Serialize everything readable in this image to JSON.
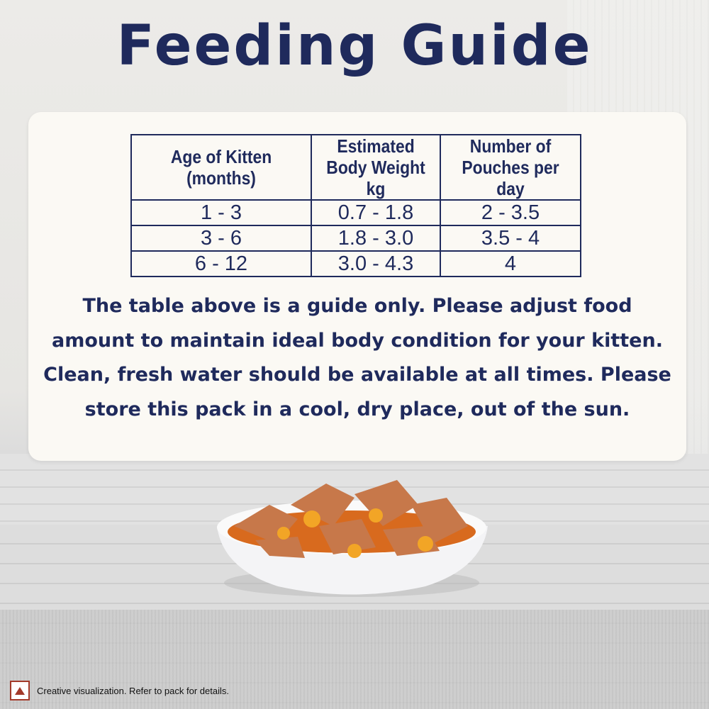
{
  "title": "Feeding Guide",
  "table": {
    "headers": [
      "Age of Kitten (months)",
      "Estimated Body Weight kg",
      "Number of Pouches per day"
    ],
    "rows": [
      [
        "1 - 3",
        "0.7 - 1.8",
        "2 - 3.5"
      ],
      [
        "3 - 6",
        "1.8 - 3.0",
        "3.5 - 4"
      ],
      [
        "6 - 12",
        "3.0 - 4.3",
        "4"
      ]
    ]
  },
  "note": "The table above is a guide only. Please adjust food amount to maintain ideal body condition for your kitten. Clean, fresh water should be available at all times. Please store this pack in a cool, dry place, out of the sun.",
  "disclaimer": {
    "icon": "warning-triangle-icon",
    "text": "Creative visualization. Refer to pack for details."
  },
  "colors": {
    "text": "#1f2a5c",
    "warning": "#a33a2a",
    "card": "#fbf9f4"
  }
}
